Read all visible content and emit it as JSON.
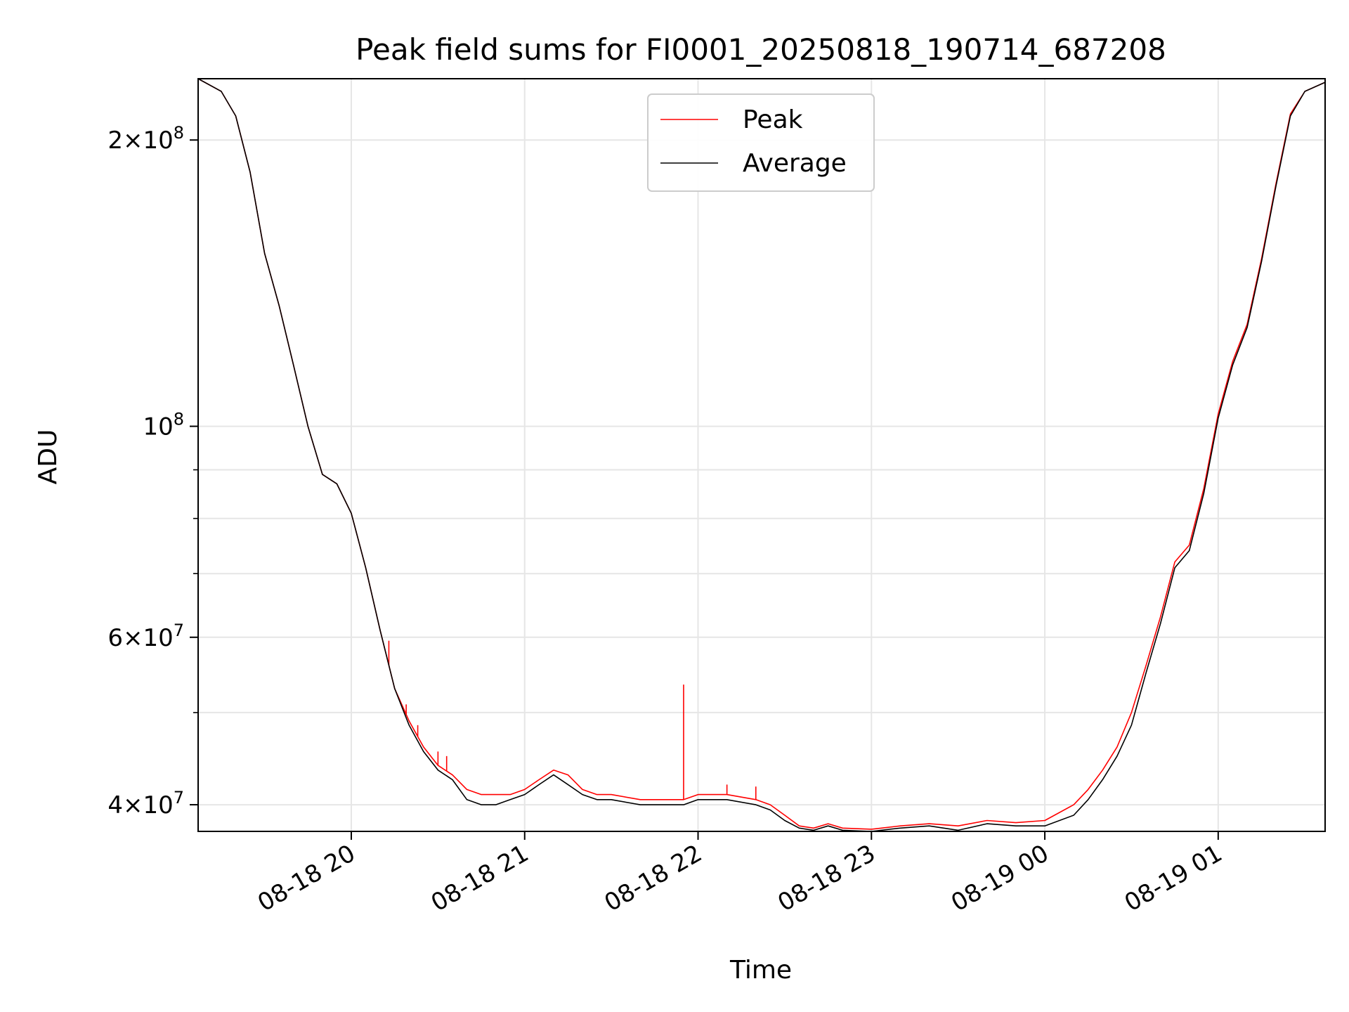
{
  "chart_data": {
    "type": "line",
    "title": "Peak field sums for FI0001_20250818_190714_687208",
    "xlabel": "Time",
    "ylabel": "ADU",
    "yscale": "log",
    "grid": true,
    "legend_position": "top-center",
    "xlim": [
      "2025-08-18 19:07",
      "2025-08-19 01:37"
    ],
    "ylim": [
      37500000,
      232000000
    ],
    "x_ticks": [
      {
        "value": "2025-08-18 20:00",
        "label": "08-18 20"
      },
      {
        "value": "2025-08-18 21:00",
        "label": "08-18 21"
      },
      {
        "value": "2025-08-18 22:00",
        "label": "08-18 22"
      },
      {
        "value": "2025-08-18 23:00",
        "label": "08-18 23"
      },
      {
        "value": "2025-08-19 00:00",
        "label": "08-19 00"
      },
      {
        "value": "2025-08-19 01:00",
        "label": "08-19 01"
      }
    ],
    "y_major_ticks": [
      {
        "value": 40000000,
        "mantissa": "4",
        "exponent": "7"
      },
      {
        "value": 60000000,
        "mantissa": "6",
        "exponent": "7"
      },
      {
        "value": 100000000,
        "mantissa": "",
        "exponent": "8"
      },
      {
        "value": 200000000,
        "mantissa": "2",
        "exponent": "8"
      }
    ],
    "y_minor_ticks": [
      50000000,
      70000000,
      80000000,
      90000000
    ],
    "series": [
      {
        "name": "Peak",
        "color": "#ff0000",
        "x": [
          "2025-08-18 19:07",
          "2025-08-18 19:15",
          "2025-08-18 19:20",
          "2025-08-18 19:25",
          "2025-08-18 19:30",
          "2025-08-18 19:35",
          "2025-08-18 19:40",
          "2025-08-18 19:45",
          "2025-08-18 19:50",
          "2025-08-18 19:55",
          "2025-08-18 20:00",
          "2025-08-18 20:05",
          "2025-08-18 20:10",
          "2025-08-18 20:15",
          "2025-08-18 20:20",
          "2025-08-18 20:25",
          "2025-08-18 20:30",
          "2025-08-18 20:35",
          "2025-08-18 20:40",
          "2025-08-18 20:45",
          "2025-08-18 20:50",
          "2025-08-18 20:55",
          "2025-08-18 21:00",
          "2025-08-18 21:05",
          "2025-08-18 21:10",
          "2025-08-18 21:15",
          "2025-08-18 21:20",
          "2025-08-18 21:25",
          "2025-08-18 21:30",
          "2025-08-18 21:40",
          "2025-08-18 21:50",
          "2025-08-18 21:55",
          "2025-08-18 22:00",
          "2025-08-18 22:10",
          "2025-08-18 22:20",
          "2025-08-18 22:25",
          "2025-08-18 22:30",
          "2025-08-18 22:35",
          "2025-08-18 22:40",
          "2025-08-18 22:45",
          "2025-08-18 22:50",
          "2025-08-18 23:00",
          "2025-08-18 23:10",
          "2025-08-18 23:20",
          "2025-08-18 23:30",
          "2025-08-18 23:40",
          "2025-08-18 23:50",
          "2025-08-19 00:00",
          "2025-08-19 00:10",
          "2025-08-19 00:15",
          "2025-08-19 00:20",
          "2025-08-19 00:25",
          "2025-08-19 00:30",
          "2025-08-19 00:35",
          "2025-08-19 00:40",
          "2025-08-19 00:45",
          "2025-08-19 00:50",
          "2025-08-19 00:55",
          "2025-08-19 01:00",
          "2025-08-19 01:05",
          "2025-08-19 01:10",
          "2025-08-19 01:15",
          "2025-08-19 01:20",
          "2025-08-19 01:25",
          "2025-08-19 01:30",
          "2025-08-19 01:37"
        ],
        "y": [
          232000000,
          225000000,
          212000000,
          185000000,
          152000000,
          134000000,
          116000000,
          100000000,
          89000000,
          87000000,
          81000000,
          71000000,
          61000000,
          53000000,
          49000000,
          46000000,
          44000000,
          43000000,
          41500000,
          41000000,
          41000000,
          41000000,
          41500000,
          42500000,
          43500000,
          43000000,
          41500000,
          41000000,
          41000000,
          40500000,
          40500000,
          40500000,
          41000000,
          41000000,
          40500000,
          40000000,
          39000000,
          38000000,
          37800000,
          38200000,
          37800000,
          37700000,
          38000000,
          38200000,
          38000000,
          38500000,
          38300000,
          38500000,
          40000000,
          41500000,
          43500000,
          46000000,
          50000000,
          56000000,
          63000000,
          72000000,
          75000000,
          86000000,
          103000000,
          117000000,
          128000000,
          150000000,
          180000000,
          213000000,
          225000000,
          230000000
        ],
        "spikes": [
          {
            "x": "2025-08-18 20:13",
            "y": 59500000
          },
          {
            "x": "2025-08-18 20:19",
            "y": 51000000
          },
          {
            "x": "2025-08-18 20:23",
            "y": 48500000
          },
          {
            "x": "2025-08-18 20:30",
            "y": 45500000
          },
          {
            "x": "2025-08-18 20:33",
            "y": 45000000
          },
          {
            "x": "2025-08-18 21:55",
            "y": 53500000
          },
          {
            "x": "2025-08-18 22:10",
            "y": 42000000
          },
          {
            "x": "2025-08-18 22:20",
            "y": 41800000
          }
        ]
      },
      {
        "name": "Average",
        "color": "#000000",
        "x": [
          "2025-08-18 19:07",
          "2025-08-18 19:15",
          "2025-08-18 19:20",
          "2025-08-18 19:25",
          "2025-08-18 19:30",
          "2025-08-18 19:35",
          "2025-08-18 19:40",
          "2025-08-18 19:45",
          "2025-08-18 19:50",
          "2025-08-18 19:55",
          "2025-08-18 20:00",
          "2025-08-18 20:05",
          "2025-08-18 20:10",
          "2025-08-18 20:15",
          "2025-08-18 20:20",
          "2025-08-18 20:25",
          "2025-08-18 20:30",
          "2025-08-18 20:35",
          "2025-08-18 20:40",
          "2025-08-18 20:45",
          "2025-08-18 20:50",
          "2025-08-18 20:55",
          "2025-08-18 21:00",
          "2025-08-18 21:05",
          "2025-08-18 21:10",
          "2025-08-18 21:15",
          "2025-08-18 21:20",
          "2025-08-18 21:25",
          "2025-08-18 21:30",
          "2025-08-18 21:40",
          "2025-08-18 21:50",
          "2025-08-18 21:55",
          "2025-08-18 22:00",
          "2025-08-18 22:10",
          "2025-08-18 22:20",
          "2025-08-18 22:25",
          "2025-08-18 22:30",
          "2025-08-18 22:35",
          "2025-08-18 22:40",
          "2025-08-18 22:45",
          "2025-08-18 22:50",
          "2025-08-18 23:00",
          "2025-08-18 23:10",
          "2025-08-18 23:20",
          "2025-08-18 23:30",
          "2025-08-18 23:40",
          "2025-08-18 23:50",
          "2025-08-19 00:00",
          "2025-08-19 00:10",
          "2025-08-19 00:15",
          "2025-08-19 00:20",
          "2025-08-19 00:25",
          "2025-08-19 00:30",
          "2025-08-19 00:35",
          "2025-08-19 00:40",
          "2025-08-19 00:45",
          "2025-08-19 00:50",
          "2025-08-19 00:55",
          "2025-08-19 01:00",
          "2025-08-19 01:05",
          "2025-08-19 01:10",
          "2025-08-19 01:15",
          "2025-08-19 01:20",
          "2025-08-19 01:25",
          "2025-08-19 01:30",
          "2025-08-19 01:37"
        ],
        "y": [
          232000000,
          225000000,
          212000000,
          185000000,
          152000000,
          134000000,
          116000000,
          100000000,
          89000000,
          87000000,
          81000000,
          71000000,
          61000000,
          53000000,
          48500000,
          45500000,
          43500000,
          42500000,
          40500000,
          40000000,
          40000000,
          40500000,
          41000000,
          42000000,
          43000000,
          42000000,
          41000000,
          40500000,
          40500000,
          40000000,
          40000000,
          40000000,
          40500000,
          40500000,
          40000000,
          39500000,
          38500000,
          37800000,
          37600000,
          38000000,
          37600000,
          37500000,
          37800000,
          38000000,
          37600000,
          38200000,
          38000000,
          38000000,
          39000000,
          40500000,
          42500000,
          45000000,
          48500000,
          55000000,
          62000000,
          71000000,
          74000000,
          85000000,
          102000000,
          116000000,
          127000000,
          149000000,
          179000000,
          212000000,
          225000000,
          230000000
        ]
      }
    ]
  }
}
